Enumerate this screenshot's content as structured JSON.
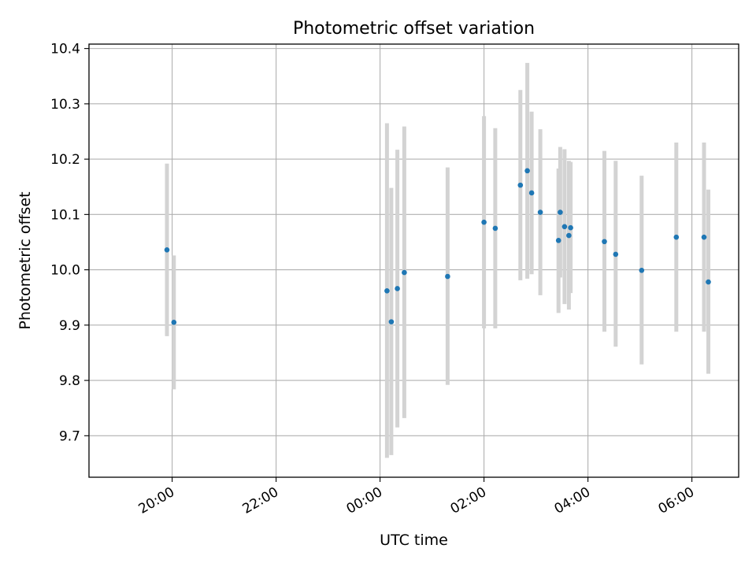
{
  "chart_data": {
    "type": "scatter",
    "title": "Photometric offset variation",
    "xlabel": "UTC time",
    "ylabel": "Photometric offset",
    "x_axis": {
      "kind": "time",
      "unit": "hours",
      "range": [
        "18:24",
        "06:54"
      ],
      "tick_labels": [
        "20:00",
        "22:00",
        "00:00",
        "02:00",
        "04:00",
        "06:00"
      ],
      "tick_values": [
        "20:00",
        "22:00",
        "00:00",
        "02:00",
        "04:00",
        "06:00"
      ]
    },
    "y_axis": {
      "range": [
        9.625,
        10.408
      ],
      "tick_values": [
        9.7,
        9.8,
        9.9,
        10.0,
        10.1,
        10.2,
        10.3,
        10.4
      ],
      "tick_labels": [
        "9.7",
        "9.8",
        "9.9",
        "10.0",
        "10.1",
        "10.2",
        "10.3",
        "10.4"
      ]
    },
    "grid": true,
    "marker_color": "#1f77b4",
    "errorbar_color": "#d3d3d3",
    "points": [
      {
        "time": "19:54",
        "y": 10.036,
        "yerr_low": 9.88,
        "yerr_high": 10.192
      },
      {
        "time": "20:02",
        "y": 9.905,
        "yerr_low": 9.784,
        "yerr_high": 10.026
      },
      {
        "time": "00:08",
        "y": 9.962,
        "yerr_low": 9.66,
        "yerr_high": 10.265
      },
      {
        "time": "00:13",
        "y": 9.906,
        "yerr_low": 9.665,
        "yerr_high": 10.148
      },
      {
        "time": "00:20",
        "y": 9.966,
        "yerr_low": 9.715,
        "yerr_high": 10.217
      },
      {
        "time": "00:28",
        "y": 9.995,
        "yerr_low": 9.732,
        "yerr_high": 10.259
      },
      {
        "time": "01:18",
        "y": 9.988,
        "yerr_low": 9.792,
        "yerr_high": 10.185
      },
      {
        "time": "02:00",
        "y": 10.086,
        "yerr_low": 9.894,
        "yerr_high": 10.278
      },
      {
        "time": "02:13",
        "y": 10.075,
        "yerr_low": 9.894,
        "yerr_high": 10.256
      },
      {
        "time": "02:42",
        "y": 10.153,
        "yerr_low": 9.981,
        "yerr_high": 10.325
      },
      {
        "time": "02:50",
        "y": 10.179,
        "yerr_low": 9.984,
        "yerr_high": 10.374
      },
      {
        "time": "02:55",
        "y": 10.139,
        "yerr_low": 9.992,
        "yerr_high": 10.286
      },
      {
        "time": "03:05",
        "y": 10.104,
        "yerr_low": 9.954,
        "yerr_high": 10.254
      },
      {
        "time": "03:26",
        "y": 10.053,
        "yerr_low": 9.922,
        "yerr_high": 10.183
      },
      {
        "time": "03:28",
        "y": 10.104,
        "yerr_low": 9.986,
        "yerr_high": 10.222
      },
      {
        "time": "03:33",
        "y": 10.078,
        "yerr_low": 9.938,
        "yerr_high": 10.218
      },
      {
        "time": "03:38",
        "y": 10.062,
        "yerr_low": 9.928,
        "yerr_high": 10.197
      },
      {
        "time": "03:40",
        "y": 10.076,
        "yerr_low": 9.958,
        "yerr_high": 10.195
      },
      {
        "time": "04:19",
        "y": 10.051,
        "yerr_low": 9.888,
        "yerr_high": 10.215
      },
      {
        "time": "04:32",
        "y": 10.028,
        "yerr_low": 9.861,
        "yerr_high": 10.197
      },
      {
        "time": "05:02",
        "y": 9.999,
        "yerr_low": 9.829,
        "yerr_high": 10.17
      },
      {
        "time": "05:42",
        "y": 10.059,
        "yerr_low": 9.888,
        "yerr_high": 10.23
      },
      {
        "time": "06:14",
        "y": 10.059,
        "yerr_low": 9.888,
        "yerr_high": 10.23
      },
      {
        "time": "06:19",
        "y": 9.978,
        "yerr_low": 9.812,
        "yerr_high": 10.145
      }
    ]
  }
}
